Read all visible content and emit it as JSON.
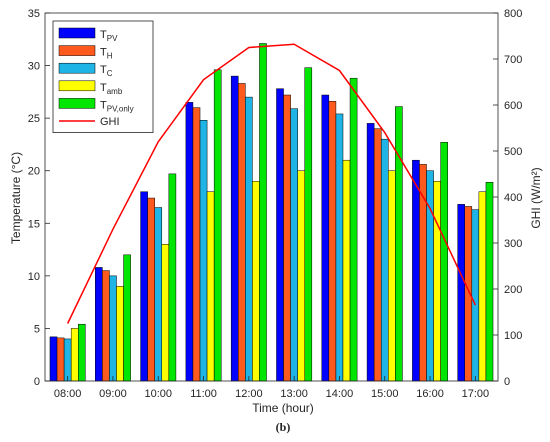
{
  "caption": "(b)",
  "chart_data": {
    "type": "bar",
    "xlabel": "Time (hour)",
    "ylabel": "Temperature (°C)",
    "y2label": "GHI (W/m²)",
    "ylim": [
      0,
      35
    ],
    "yticks": [
      0,
      5,
      10,
      15,
      20,
      25,
      30,
      35
    ],
    "y2lim": [
      0,
      800
    ],
    "y2ticks": [
      0,
      100,
      200,
      300,
      400,
      500,
      600,
      700,
      800
    ],
    "grid": false,
    "legend_position": "top-left",
    "categories": [
      "08:00",
      "09:00",
      "10:00",
      "11:00",
      "12:00",
      "13:00",
      "14:00",
      "15:00",
      "16:00",
      "17:00"
    ],
    "series": [
      {
        "name": "T",
        "sub": "PV",
        "color": "#0000ff",
        "values": [
          4.2,
          10.8,
          18.0,
          26.5,
          29.0,
          27.8,
          27.2,
          24.5,
          21.0,
          16.8
        ]
      },
      {
        "name": "T",
        "sub": "H",
        "color": "#ff5a1e",
        "values": [
          4.1,
          10.5,
          17.4,
          26.0,
          28.3,
          27.2,
          26.6,
          24.0,
          20.6,
          16.6
        ]
      },
      {
        "name": "T",
        "sub": "C",
        "color": "#1eb4e6",
        "values": [
          4.0,
          10.0,
          16.5,
          24.8,
          27.0,
          25.9,
          25.4,
          23.0,
          20.0,
          16.3
        ]
      },
      {
        "name": "T",
        "sub": "amb",
        "color": "#ffff00",
        "values": [
          5.0,
          9.0,
          13.0,
          18.0,
          19.0,
          20.0,
          21.0,
          20.0,
          19.0,
          18.0
        ]
      },
      {
        "name": "T",
        "sub": "PV,only",
        "color": "#00e600",
        "values": [
          5.4,
          12.0,
          19.7,
          29.6,
          32.1,
          29.8,
          28.8,
          26.1,
          22.7,
          18.9
        ]
      }
    ],
    "line_series": {
      "name": "GHI",
      "color": "#ff0000",
      "axis": "right",
      "values": [
        125,
        330,
        520,
        655,
        725,
        732,
        675,
        540,
        375,
        165
      ]
    }
  }
}
